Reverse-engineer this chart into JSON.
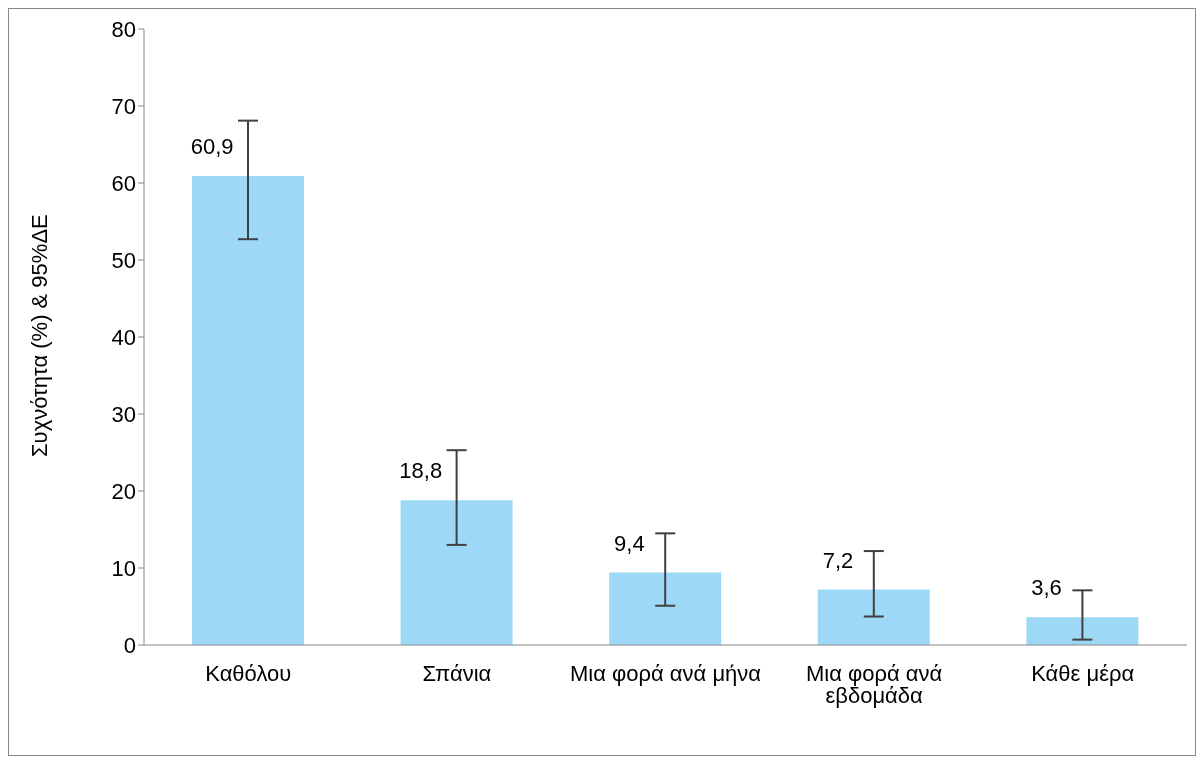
{
  "chart_data": {
    "type": "bar",
    "ylabel": "Συχνότητα (%) & 95%ΔΕ",
    "categories": [
      "Καθόλου",
      "Σπάνια",
      "Μια φορά ανά μήνα",
      "Μια φορά ανά εβδομάδα",
      "Κάθε μέρα"
    ],
    "values": [
      60.9,
      18.8,
      9.4,
      7.2,
      3.6
    ],
    "errors": [
      [
        52.7,
        68.1
      ],
      [
        13.0,
        25.3
      ],
      [
        5.1,
        14.5
      ],
      [
        3.7,
        12.2
      ],
      [
        0.7,
        7.1
      ]
    ],
    "color": "#9dd8f6",
    "ylim": [
      0,
      80
    ],
    "yticks": [
      0,
      10,
      20,
      30,
      40,
      50,
      60,
      70,
      80
    ],
    "grid": false,
    "value_labels": [
      "60,9",
      "18,8",
      "9,4",
      "7,2",
      "3,6"
    ]
  }
}
